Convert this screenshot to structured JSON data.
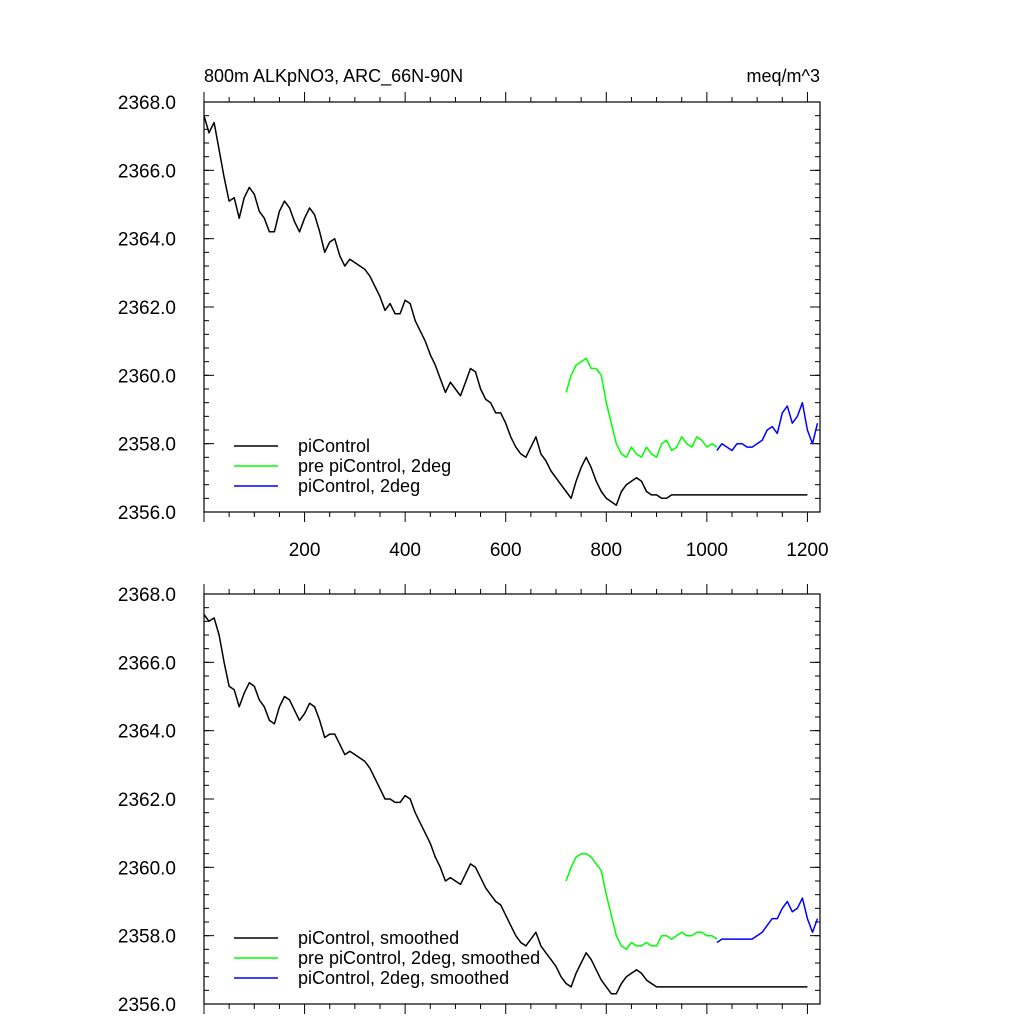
{
  "chart_data": [
    {
      "type": "line",
      "title": "800m ALKpNO3, ARC_66N-90N",
      "units": "meq/m^3",
      "xlim": [
        0,
        1225
      ],
      "ylim": [
        2356.0,
        2368.0
      ],
      "x_ticks": [
        200,
        400,
        600,
        800,
        1000,
        1200
      ],
      "y_ticks": [
        "2356.0",
        "2358.0",
        "2360.0",
        "2362.0",
        "2364.0",
        "2366.0",
        "2368.0"
      ],
      "legend_position": "bottom-left",
      "grid": false,
      "series": [
        {
          "name": "piControl",
          "color": "#000000",
          "x": [
            0,
            10,
            20,
            30,
            40,
            50,
            60,
            70,
            80,
            90,
            100,
            110,
            120,
            130,
            140,
            150,
            160,
            170,
            180,
            190,
            200,
            210,
            220,
            230,
            240,
            250,
            260,
            270,
            280,
            290,
            300,
            310,
            320,
            330,
            340,
            350,
            360,
            370,
            380,
            390,
            400,
            410,
            420,
            430,
            440,
            450,
            460,
            470,
            480,
            490,
            500,
            510,
            520,
            530,
            540,
            550,
            560,
            570,
            580,
            590,
            600,
            610,
            620,
            630,
            640,
            650,
            660,
            670,
            680,
            690,
            700,
            710,
            720,
            730,
            740,
            750,
            760,
            770,
            780,
            790,
            800,
            810,
            820,
            830,
            840,
            850,
            860,
            870,
            880,
            890,
            900,
            910,
            920,
            930,
            940,
            950,
            960,
            970,
            980,
            990,
            1000,
            1010,
            1020,
            1030,
            1040,
            1050,
            1060,
            1070,
            1080,
            1090,
            1100,
            1110,
            1120,
            1130,
            1140,
            1150,
            1160,
            1170,
            1180,
            1190,
            1200
          ],
          "y": [
            2367.6,
            2367.1,
            2367.4,
            2366.6,
            2365.8,
            2365.1,
            2365.2,
            2364.6,
            2365.2,
            2365.5,
            2365.3,
            2364.8,
            2364.6,
            2364.2,
            2364.2,
            2364.8,
            2365.1,
            2364.9,
            2364.5,
            2364.2,
            2364.6,
            2364.9,
            2364.7,
            2364.2,
            2363.6,
            2363.9,
            2364.0,
            2363.5,
            2363.2,
            2363.4,
            2363.3,
            2363.2,
            2363.1,
            2362.9,
            2362.6,
            2362.3,
            2361.9,
            2362.1,
            2361.8,
            2361.8,
            2362.2,
            2362.1,
            2361.6,
            2361.3,
            2361.0,
            2360.6,
            2360.3,
            2359.9,
            2359.5,
            2359.8,
            2359.6,
            2359.4,
            2359.8,
            2360.2,
            2360.1,
            2359.6,
            2359.3,
            2359.2,
            2358.9,
            2358.9,
            2358.6,
            2358.2,
            2357.9,
            2357.7,
            2357.6,
            2357.9,
            2358.2,
            2357.7,
            2357.5,
            2357.2,
            2357.0,
            2356.8,
            2356.6,
            2356.4,
            2356.9,
            2357.3,
            2357.6,
            2357.3,
            2356.9,
            2356.6,
            2356.4,
            2356.3,
            2356.2,
            2356.6,
            2356.8,
            2356.9,
            2357.0,
            2356.9,
            2356.6,
            2356.5,
            2356.5,
            2356.4,
            2356.4,
            2356.5,
            2356.5,
            2356.5,
            2356.5,
            2356.5,
            2356.5,
            2356.5,
            2356.5,
            2356.5,
            2356.5,
            2356.5,
            2356.5,
            2356.5,
            2356.5,
            2356.5,
            2356.5,
            2356.5,
            2356.5,
            2356.5,
            2356.5,
            2356.5,
            2356.5,
            2356.5,
            2356.5,
            2356.5,
            2356.5,
            2356.5,
            2356.5
          ]
        },
        {
          "name": "pre piControl, 2deg",
          "color": "#00ff00",
          "x": [
            720,
            730,
            740,
            750,
            760,
            770,
            780,
            790,
            800,
            810,
            820,
            830,
            840,
            850,
            860,
            870,
            880,
            890,
            900,
            910,
            920,
            930,
            940,
            950,
            960,
            970,
            980,
            990,
            1000,
            1010,
            1020
          ],
          "y": [
            2359.5,
            2360.0,
            2360.3,
            2360.4,
            2360.5,
            2360.2,
            2360.2,
            2360.0,
            2359.2,
            2358.6,
            2358.0,
            2357.7,
            2357.6,
            2357.9,
            2357.7,
            2357.6,
            2357.9,
            2357.7,
            2357.6,
            2358.0,
            2358.1,
            2357.8,
            2357.9,
            2358.2,
            2358.0,
            2357.9,
            2358.2,
            2358.1,
            2357.9,
            2358.0,
            2357.9
          ]
        },
        {
          "name": "piControl, 2deg",
          "color": "#0000ff",
          "x": [
            1020,
            1030,
            1040,
            1050,
            1060,
            1070,
            1080,
            1090,
            1100,
            1110,
            1120,
            1130,
            1140,
            1150,
            1160,
            1170,
            1180,
            1190,
            1200,
            1210,
            1220
          ],
          "y": [
            2357.8,
            2358.0,
            2357.9,
            2357.8,
            2358.0,
            2358.0,
            2357.9,
            2357.9,
            2358.0,
            2358.1,
            2358.4,
            2358.5,
            2358.3,
            2358.9,
            2359.1,
            2358.6,
            2358.8,
            2359.2,
            2358.4,
            2358.0,
            2358.6
          ]
        }
      ]
    },
    {
      "type": "line",
      "title": "",
      "xlim": [
        0,
        1225
      ],
      "ylim": [
        2356.0,
        2368.0
      ],
      "y_ticks": [
        "2356.0",
        "2358.0",
        "2360.0",
        "2362.0",
        "2364.0",
        "2366.0",
        "2368.0"
      ],
      "legend_position": "bottom-left",
      "grid": false,
      "series": [
        {
          "name": "piControl, smoothed",
          "color": "#000000",
          "x": [
            0,
            10,
            20,
            30,
            40,
            50,
            60,
            70,
            80,
            90,
            100,
            110,
            120,
            130,
            140,
            150,
            160,
            170,
            180,
            190,
            200,
            210,
            220,
            230,
            240,
            250,
            260,
            270,
            280,
            290,
            300,
            310,
            320,
            330,
            340,
            350,
            360,
            370,
            380,
            390,
            400,
            410,
            420,
            430,
            440,
            450,
            460,
            470,
            480,
            490,
            500,
            510,
            520,
            530,
            540,
            550,
            560,
            570,
            580,
            590,
            600,
            610,
            620,
            630,
            640,
            650,
            660,
            670,
            680,
            690,
            700,
            710,
            720,
            730,
            740,
            750,
            760,
            770,
            780,
            790,
            800,
            810,
            820,
            830,
            840,
            850,
            860,
            870,
            880,
            890,
            900,
            910,
            920,
            930,
            940,
            950,
            960,
            970,
            980,
            990,
            1000,
            1010,
            1020,
            1030,
            1040,
            1050,
            1060,
            1070,
            1080,
            1090,
            1100,
            1110,
            1120,
            1130,
            1140,
            1150,
            1160,
            1170,
            1180,
            1190,
            1200
          ],
          "y": [
            2367.4,
            2367.2,
            2367.3,
            2366.8,
            2366.0,
            2365.3,
            2365.2,
            2364.7,
            2365.1,
            2365.4,
            2365.3,
            2364.9,
            2364.7,
            2364.3,
            2364.2,
            2364.7,
            2365.0,
            2364.9,
            2364.6,
            2364.3,
            2364.5,
            2364.8,
            2364.7,
            2364.3,
            2363.8,
            2363.9,
            2363.9,
            2363.6,
            2363.3,
            2363.4,
            2363.3,
            2363.2,
            2363.1,
            2362.9,
            2362.6,
            2362.3,
            2362.0,
            2362.0,
            2361.9,
            2361.9,
            2362.1,
            2362.0,
            2361.6,
            2361.3,
            2361.0,
            2360.7,
            2360.3,
            2360.0,
            2359.6,
            2359.7,
            2359.6,
            2359.5,
            2359.8,
            2360.1,
            2360.0,
            2359.7,
            2359.4,
            2359.2,
            2359.0,
            2358.9,
            2358.6,
            2358.3,
            2358.0,
            2357.8,
            2357.7,
            2357.9,
            2358.1,
            2357.7,
            2357.5,
            2357.3,
            2357.1,
            2356.8,
            2356.6,
            2356.5,
            2356.9,
            2357.2,
            2357.5,
            2357.3,
            2357.0,
            2356.7,
            2356.5,
            2356.3,
            2356.3,
            2356.6,
            2356.8,
            2356.9,
            2357.0,
            2356.9,
            2356.7,
            2356.6,
            2356.5,
            2356.5,
            2356.5,
            2356.5,
            2356.5,
            2356.5,
            2356.5,
            2356.5,
            2356.5,
            2356.5,
            2356.5,
            2356.5,
            2356.5,
            2356.5,
            2356.5,
            2356.5,
            2356.5,
            2356.5,
            2356.5,
            2356.5,
            2356.5,
            2356.5,
            2356.5,
            2356.5,
            2356.5,
            2356.5,
            2356.5,
            2356.5,
            2356.5,
            2356.5,
            2356.5
          ]
        },
        {
          "name": "pre piControl, 2deg, smoothed",
          "color": "#00ff00",
          "x": [
            720,
            730,
            740,
            750,
            760,
            770,
            780,
            790,
            800,
            810,
            820,
            830,
            840,
            850,
            860,
            870,
            880,
            890,
            900,
            910,
            920,
            930,
            940,
            950,
            960,
            970,
            980,
            990,
            1000,
            1010,
            1020
          ],
          "y": [
            2359.6,
            2360.0,
            2360.3,
            2360.4,
            2360.4,
            2360.3,
            2360.1,
            2359.9,
            2359.2,
            2358.6,
            2358.0,
            2357.7,
            2357.6,
            2357.8,
            2357.7,
            2357.7,
            2357.8,
            2357.7,
            2357.7,
            2358.0,
            2358.0,
            2357.9,
            2358.0,
            2358.1,
            2358.0,
            2358.0,
            2358.1,
            2358.1,
            2358.0,
            2358.0,
            2357.9
          ]
        },
        {
          "name": "piControl, 2deg, smoothed",
          "color": "#0000ff",
          "x": [
            1020,
            1030,
            1040,
            1050,
            1060,
            1070,
            1080,
            1090,
            1100,
            1110,
            1120,
            1130,
            1140,
            1150,
            1160,
            1170,
            1180,
            1190,
            1200,
            1210,
            1220
          ],
          "y": [
            2357.8,
            2357.9,
            2357.9,
            2357.9,
            2357.9,
            2357.9,
            2357.9,
            2357.9,
            2358.0,
            2358.1,
            2358.3,
            2358.5,
            2358.5,
            2358.8,
            2359.0,
            2358.7,
            2358.8,
            2359.1,
            2358.5,
            2358.1,
            2358.5
          ]
        }
      ]
    }
  ]
}
